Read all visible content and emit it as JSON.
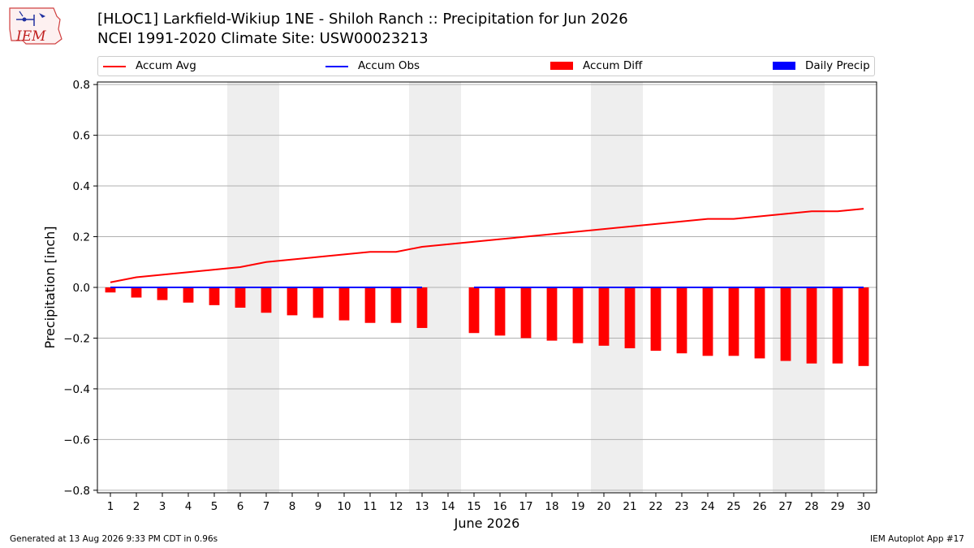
{
  "header": {
    "title_line1": "[HLOC1] Larkfield-Wikiup 1NE - Shiloh Ranch :: Precipitation for Jun 2026",
    "title_line2": "NCEI 1991-2020 Climate Site: USW00023213",
    "logo_text": "IEM"
  },
  "legend": [
    {
      "label": "Accum Avg",
      "color": "#ff0000",
      "kind": "line"
    },
    {
      "label": "Accum Obs",
      "color": "#0000ff",
      "kind": "line"
    },
    {
      "label": "Accum Diff",
      "color": "#ff0000",
      "kind": "box"
    },
    {
      "label": "Daily Precip",
      "color": "#0000ff",
      "kind": "box"
    }
  ],
  "footer": {
    "left": "Generated at 13 Aug 2026 9:33 PM CDT in 0.96s",
    "right": "IEM Autoplot App #17"
  },
  "chart_data": {
    "type": "bar",
    "xlabel": "June 2026",
    "ylabel": "Precipitation [inch]",
    "ylim": [
      -0.81,
      0.81
    ],
    "xlim": [
      0.5,
      30.5
    ],
    "yticks": [
      0.8,
      0.6,
      0.4,
      0.2,
      0.0,
      -0.2,
      -0.4,
      -0.6,
      -0.8
    ],
    "ytick_labels": [
      "0.8",
      "0.6",
      "0.4",
      "0.2",
      "0.0",
      "−0.2",
      "−0.4",
      "−0.6",
      "−0.8"
    ],
    "x": [
      1,
      2,
      3,
      4,
      5,
      6,
      7,
      8,
      9,
      10,
      11,
      12,
      13,
      14,
      15,
      16,
      17,
      18,
      19,
      20,
      21,
      22,
      23,
      24,
      25,
      26,
      27,
      28,
      29,
      30
    ],
    "x_tick_labels": [
      "1",
      "2",
      "3",
      "4",
      "5",
      "6",
      "7",
      "8",
      "9",
      "10",
      "11",
      "12",
      "13",
      "14",
      "15",
      "16",
      "17",
      "18",
      "19",
      "20",
      "21",
      "22",
      "23",
      "24",
      "25",
      "26",
      "27",
      "28",
      "29",
      "30"
    ],
    "weekend_shading": [
      [
        5.5,
        7.5
      ],
      [
        12.5,
        14.5
      ],
      [
        19.5,
        21.5
      ],
      [
        26.5,
        28.5
      ]
    ],
    "grid": "horizontal",
    "series": [
      {
        "name": "Accum Avg",
        "kind": "line",
        "color": "#ff0000",
        "values": [
          0.02,
          0.04,
          0.05,
          0.06,
          0.07,
          0.08,
          0.1,
          0.11,
          0.12,
          0.13,
          0.14,
          0.14,
          0.16,
          0.17,
          0.18,
          0.19,
          0.2,
          0.21,
          0.22,
          0.23,
          0.24,
          0.25,
          0.26,
          0.27,
          0.27,
          0.28,
          0.29,
          0.3,
          0.3,
          0.31
        ]
      },
      {
        "name": "Accum Obs",
        "kind": "line",
        "color": "#0000ff",
        "values": [
          0,
          0,
          0,
          0,
          0,
          0,
          0,
          0,
          0,
          0,
          0,
          0,
          0,
          null,
          0,
          0,
          0,
          0,
          0,
          0,
          0,
          0,
          0,
          0,
          0,
          0,
          0,
          0,
          0,
          0
        ]
      },
      {
        "name": "Accum Diff",
        "kind": "bar",
        "color": "#ff0000",
        "values": [
          -0.02,
          -0.04,
          -0.05,
          -0.06,
          -0.07,
          -0.08,
          -0.1,
          -0.11,
          -0.12,
          -0.13,
          -0.14,
          -0.14,
          -0.16,
          null,
          -0.18,
          -0.19,
          -0.2,
          -0.21,
          -0.22,
          -0.23,
          -0.24,
          -0.25,
          -0.26,
          -0.27,
          -0.27,
          -0.28,
          -0.29,
          -0.3,
          -0.3,
          -0.31
        ]
      },
      {
        "name": "Daily Precip",
        "kind": "bar",
        "color": "#0000ff",
        "values": [
          0,
          0,
          0,
          0,
          0,
          0,
          0,
          0,
          0,
          0,
          0,
          0,
          0,
          null,
          0,
          0,
          0,
          0,
          0,
          0,
          0,
          0,
          0,
          0,
          0,
          0,
          0,
          0,
          0,
          0
        ]
      }
    ]
  }
}
